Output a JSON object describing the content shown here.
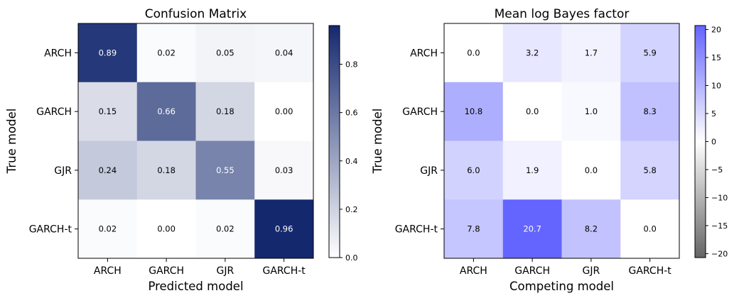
{
  "chart_data": [
    {
      "type": "heatmap",
      "title": "Confusion Matrix",
      "xlabel": "Predicted model",
      "ylabel": "True model",
      "x_categories": [
        "ARCH",
        "GARCH",
        "GJR",
        "GARCH-t"
      ],
      "y_categories": [
        "ARCH",
        "GARCH",
        "GJR",
        "GARCH-t"
      ],
      "values": [
        [
          0.89,
          0.02,
          0.05,
          0.04
        ],
        [
          0.15,
          0.66,
          0.18,
          0.0
        ],
        [
          0.24,
          0.18,
          0.55,
          0.03
        ],
        [
          0.02,
          0.0,
          0.02,
          0.96
        ]
      ],
      "value_format": 2,
      "colorbar": {
        "range": [
          0,
          0.96
        ],
        "ticks": [
          0.0,
          0.2,
          0.4,
          0.6,
          0.8
        ],
        "tick_labels": [
          "0.0",
          "0.2",
          "0.4",
          "0.6",
          "0.8"
        ],
        "colors": [
          "#ffffff",
          "#14286e"
        ]
      }
    },
    {
      "type": "heatmap",
      "title": "Mean log Bayes factor",
      "xlabel": "Competing model",
      "ylabel": "True model",
      "x_categories": [
        "ARCH",
        "GARCH",
        "GJR",
        "GARCH-t"
      ],
      "y_categories": [
        "ARCH",
        "GARCH",
        "GJR",
        "GARCH-t"
      ],
      "values": [
        [
          0.0,
          3.2,
          1.7,
          5.9
        ],
        [
          10.8,
          0.0,
          1.0,
          8.3
        ],
        [
          6.0,
          1.9,
          0.0,
          5.8
        ],
        [
          7.8,
          20.7,
          8.2,
          0.0
        ]
      ],
      "value_format": 1,
      "colorbar": {
        "range": [
          -20.7,
          20.7
        ],
        "ticks": [
          20,
          15,
          10,
          5,
          0,
          -5,
          -10,
          -15,
          -20
        ],
        "tick_labels": [
          "20",
          "15",
          "10",
          "5",
          "0",
          "−5",
          "−10",
          "−15",
          "−20"
        ],
        "colors": [
          "#646464",
          "#ffffff",
          "#6464ff"
        ]
      }
    }
  ]
}
